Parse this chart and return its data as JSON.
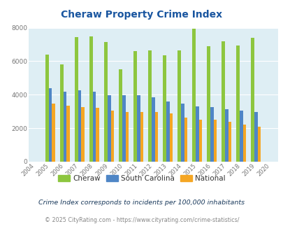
{
  "title": "Cheraw Property Crime Index",
  "years": [
    2004,
    2005,
    2006,
    2007,
    2008,
    2009,
    2010,
    2011,
    2012,
    2013,
    2014,
    2015,
    2016,
    2017,
    2018,
    2019,
    2020
  ],
  "cheraw": [
    0,
    6400,
    5800,
    7450,
    7500,
    7150,
    5500,
    6600,
    6650,
    6350,
    6650,
    7950,
    6900,
    7200,
    6950,
    7400,
    0
  ],
  "south_carolina": [
    0,
    4400,
    4200,
    4250,
    4200,
    3950,
    3950,
    3950,
    3850,
    3600,
    3450,
    3300,
    3250,
    3150,
    3050,
    2950,
    0
  ],
  "national": [
    0,
    3450,
    3350,
    3250,
    3200,
    3050,
    2950,
    2950,
    2950,
    2900,
    2650,
    2500,
    2500,
    2400,
    2200,
    2100,
    0
  ],
  "cheraw_color": "#8dc63f",
  "sc_color": "#4f86c6",
  "national_color": "#f5a623",
  "bg_color": "#deeef4",
  "ylabel_color": "#777777",
  "title_color": "#1a56a0",
  "legend_labels": [
    "Cheraw",
    "South Carolina",
    "National"
  ],
  "footnote1": "Crime Index corresponds to incidents per 100,000 inhabitants",
  "footnote2": "© 2025 CityRating.com - https://www.cityrating.com/crime-statistics/",
  "ylim": [
    0,
    8000
  ],
  "yticks": [
    0,
    2000,
    4000,
    6000,
    8000
  ],
  "bar_width": 0.22
}
